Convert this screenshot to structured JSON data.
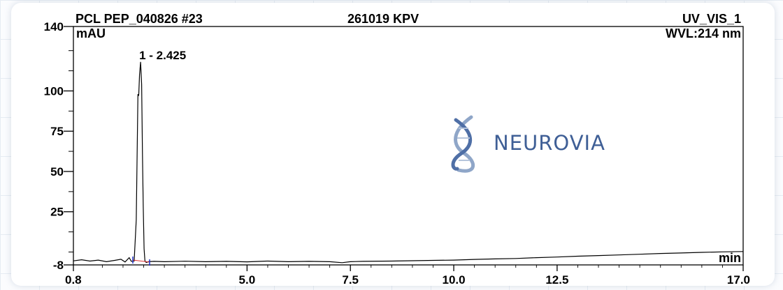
{
  "header": {
    "sample": "PCL PEP_040826 #23",
    "code": "261019 KPV",
    "channel": "UV_VIS_1",
    "wavelength": "WVL:214 nm"
  },
  "watermark": {
    "text": "NEUROVIA",
    "icon": "dna-helix-icon",
    "color": "#3f5f96"
  },
  "chart_data": {
    "type": "line",
    "title": "",
    "xlabel": "min",
    "ylabel": "mAU",
    "xlim": [
      0.8,
      17.0
    ],
    "ylim": [
      -8,
      140
    ],
    "x_ticks": [
      "0.8",
      "5.0",
      "7.5",
      "10.0",
      "12.5",
      "17.0"
    ],
    "y_ticks": [
      "-8",
      "25",
      "50",
      "75",
      "100",
      "140"
    ],
    "grid": false,
    "legend": "none",
    "peaks": [
      {
        "label": "1 - 2.425",
        "retention_time": 2.425,
        "height": 118
      }
    ],
    "series": [
      {
        "color": "#000000",
        "x": [
          0.8,
          1.0,
          1.2,
          1.4,
          1.6,
          1.8,
          1.95,
          2.05,
          2.15,
          2.2,
          2.27,
          2.32,
          2.36,
          2.38,
          2.4,
          2.425,
          2.45,
          2.47,
          2.49,
          2.51,
          2.53,
          2.56,
          2.62,
          2.75,
          3.0,
          3.5,
          4.0,
          4.5,
          5.0,
          5.5,
          6.0,
          6.5,
          7.0,
          7.3,
          7.5,
          7.8,
          8.5,
          9.0,
          9.5,
          10.0,
          10.5,
          11.0,
          11.5,
          12.0,
          12.5,
          13.0,
          13.5,
          14.0,
          14.5,
          15.0,
          15.5,
          16.0,
          16.5,
          17.0
        ],
        "y": [
          -5.5,
          -4.8,
          -5.6,
          -5.0,
          -6.0,
          -5.2,
          -4.5,
          -6.2,
          -3.5,
          -5.8,
          -5.6,
          20,
          98,
          97,
          110,
          118,
          104,
          60,
          28,
          2,
          -5.5,
          -6.5,
          -6.0,
          -5.8,
          -6.0,
          -5.7,
          -6.0,
          -5.8,
          -6.1,
          -5.6,
          -6.0,
          -5.8,
          -6.0,
          -6.6,
          -6.0,
          -5.8,
          -5.6,
          -5.4,
          -5.2,
          -5.0,
          -4.6,
          -4.3,
          -4.0,
          -3.5,
          -3.1,
          -2.6,
          -2.2,
          -1.8,
          -1.4,
          -0.9,
          -0.6,
          -0.2,
          0.1,
          0.3
        ]
      }
    ]
  }
}
